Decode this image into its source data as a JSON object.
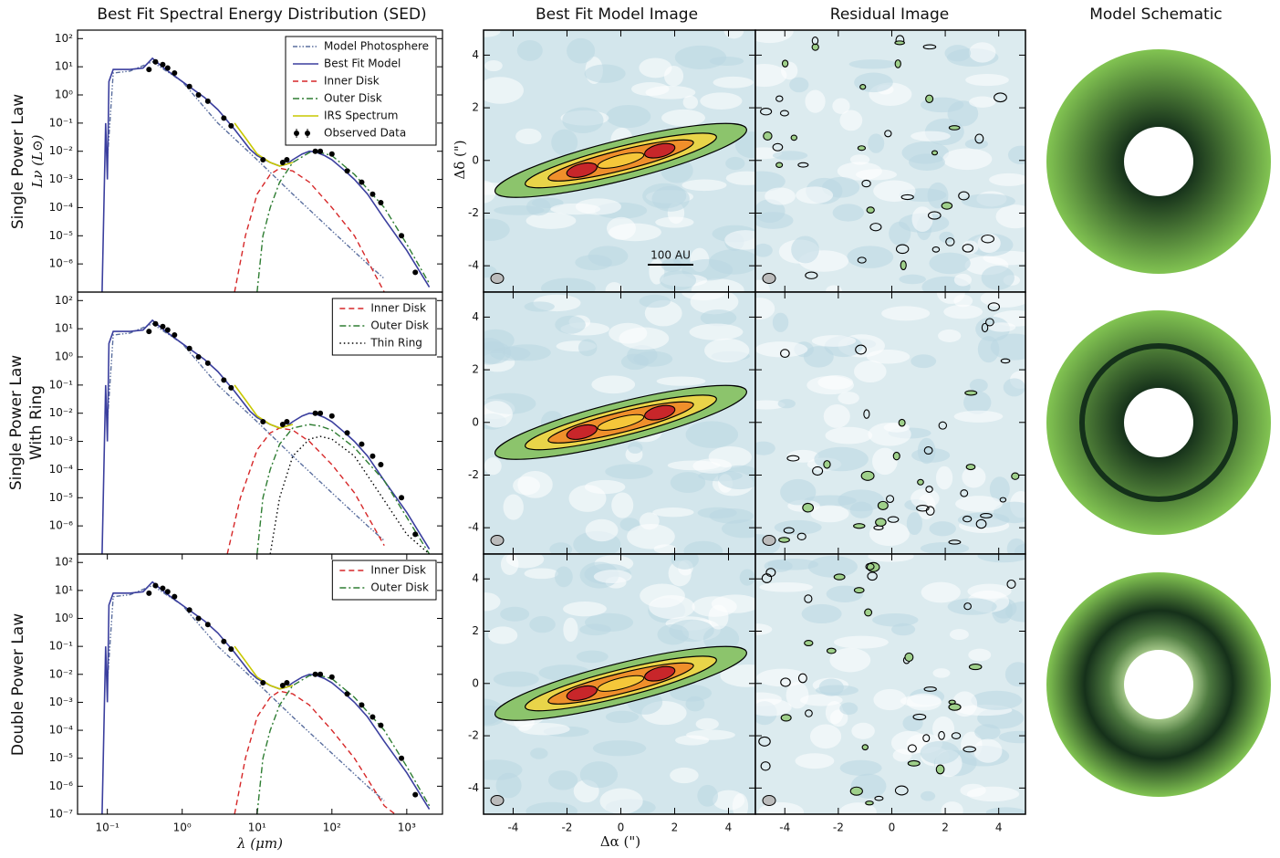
{
  "column_titles": [
    "Best Fit Spectral Energy Distribution (SED)",
    "Best Fit Model Image",
    "Residual Image",
    "Model Schematic"
  ],
  "row_labels": [
    [
      "Single Power Law"
    ],
    [
      "Single Power Law",
      "With Ring"
    ],
    [
      "Double Power Law"
    ]
  ],
  "image_axes": {
    "xlabel": "Δα (\")",
    "ylabel": "Δδ (\")",
    "xlim": [
      -5.1,
      5.0
    ],
    "ylim": [
      -5.0,
      4.95
    ],
    "xticks": [
      -4,
      -2,
      0,
      2,
      4
    ],
    "yticks": [
      -4,
      -2,
      0,
      2,
      4
    ],
    "scale_bar": "100 AU"
  },
  "chart_data": [
    {
      "type": "line",
      "xscale": "log",
      "yscale": "log",
      "ylabel": "Lν (L⊙)",
      "legend": "upper right",
      "xlim": [
        0.04,
        3000
      ],
      "ylim": [
        1e-07,
        200
      ],
      "yticks": [
        {
          "value": 100,
          "label": "10²"
        },
        {
          "value": 10,
          "label": "10¹"
        },
        {
          "value": 1,
          "label": "10⁰"
        },
        {
          "value": 0.1,
          "label": "10⁻¹"
        },
        {
          "value": 0.01,
          "label": "10⁻²"
        },
        {
          "value": 0.001,
          "label": "10⁻³"
        },
        {
          "value": 0.0001,
          "label": "10⁻⁴"
        },
        {
          "value": 1e-05,
          "label": "10⁻⁵"
        },
        {
          "value": 1e-06,
          "label": "10⁻⁶"
        }
      ],
      "series": [
        {
          "name": "Model Photosphere",
          "color": "#5a6e9e",
          "linestyle": "dashdotdot",
          "x": [
            0.1,
            0.12,
            0.2,
            0.4,
            1,
            3,
            10,
            30,
            100,
            300,
            500
          ],
          "values": [
            0.005,
            6,
            7,
            15,
            3,
            0.1,
            0.005,
            0.0003,
            1.5e-05,
            1e-06,
            3e-07
          ]
        },
        {
          "name": "Best Fit Model",
          "color": "#3b3f9e",
          "linestyle": "solid",
          "x": [
            0.085,
            0.095,
            0.1,
            0.105,
            0.12,
            0.2,
            0.3,
            0.4,
            0.5,
            0.7,
            1,
            2,
            3,
            5,
            8,
            10,
            15,
            20,
            25,
            30,
            40,
            50,
            60,
            80,
            100,
            150,
            200,
            300,
            500,
            1000,
            2000
          ],
          "values": [
            1e-07,
            0.1,
            0.001,
            3,
            8,
            8,
            9,
            20,
            12,
            6,
            3,
            0.8,
            0.3,
            0.06,
            0.012,
            0.007,
            0.004,
            0.003,
            0.0035,
            0.005,
            0.008,
            0.01,
            0.0095,
            0.007,
            0.005,
            0.002,
            0.001,
            0.0003,
            4e-05,
            3e-06,
            1.5e-07
          ]
        },
        {
          "name": "Inner Disk",
          "color": "#d62728",
          "linestyle": "dashed",
          "x": [
            5,
            7,
            10,
            15,
            20,
            30,
            50,
            100,
            200,
            500
          ],
          "values": [
            1e-07,
            1e-05,
            0.0003,
            0.0015,
            0.0025,
            0.002,
            0.0008,
            0.0001,
            1e-05,
            1e-07
          ]
        },
        {
          "name": "Outer Disk",
          "color": "#2e7d32",
          "linestyle": "dashdot",
          "x": [
            10,
            12,
            15,
            20,
            30,
            50,
            70,
            100,
            200,
            500,
            1000,
            2000
          ],
          "values": [
            1e-07,
            1e-05,
            0.0001,
            0.0008,
            0.004,
            0.009,
            0.009,
            0.007,
            0.0015,
            0.0001,
            5e-06,
            2e-07
          ]
        },
        {
          "name": "IRS Spectrum",
          "color": "#c8c800",
          "linestyle": "solid",
          "x": [
            5,
            7,
            10,
            15,
            20,
            30
          ],
          "values": [
            0.1,
            0.03,
            0.008,
            0.004,
            0.003,
            0.004
          ]
        },
        {
          "name": "Observed Data",
          "color": "#000000",
          "linestyle": "none",
          "marker": "o",
          "x": [
            0.36,
            0.44,
            0.55,
            0.64,
            0.79,
            1.25,
            1.65,
            2.2,
            3.6,
            4.5,
            12,
            22,
            25,
            60,
            70,
            100,
            160,
            250,
            350,
            450,
            850,
            1300
          ],
          "values": [
            8,
            15,
            12,
            9,
            6,
            2,
            1,
            0.6,
            0.15,
            0.08,
            0.005,
            0.004,
            0.005,
            0.01,
            0.01,
            0.008,
            0.002,
            0.0008,
            0.0003,
            0.00015,
            1e-05,
            5e-07
          ]
        }
      ]
    },
    {
      "type": "line",
      "xscale": "log",
      "yscale": "log",
      "legend": "upper right",
      "xlim": [
        0.04,
        3000
      ],
      "ylim": [
        1e-07,
        200
      ],
      "yticks": [
        {
          "value": 100,
          "label": "10²"
        },
        {
          "value": 10,
          "label": "10¹"
        },
        {
          "value": 1,
          "label": "10⁰"
        },
        {
          "value": 0.1,
          "label": "10⁻¹"
        },
        {
          "value": 0.01,
          "label": "10⁻²"
        },
        {
          "value": 0.001,
          "label": "10⁻³"
        },
        {
          "value": 0.0001,
          "label": "10⁻⁴"
        },
        {
          "value": 1e-05,
          "label": "10⁻⁵"
        },
        {
          "value": 1e-06,
          "label": "10⁻⁶"
        }
      ],
      "series": [
        {
          "color": "#5a6e9e",
          "linestyle": "dashdotdot",
          "x": [
            0.1,
            0.12,
            0.2,
            0.4,
            1,
            3,
            10,
            30,
            100,
            300,
            500
          ],
          "values": [
            0.005,
            6,
            7,
            15,
            3,
            0.1,
            0.005,
            0.0003,
            1.5e-05,
            1e-06,
            3e-07
          ]
        },
        {
          "color": "#3b3f9e",
          "linestyle": "solid",
          "x": [
            0.085,
            0.095,
            0.1,
            0.105,
            0.12,
            0.2,
            0.3,
            0.4,
            0.5,
            0.7,
            1,
            2,
            3,
            5,
            8,
            10,
            15,
            20,
            25,
            30,
            40,
            50,
            60,
            80,
            100,
            150,
            200,
            300,
            500,
            1000,
            2000
          ],
          "values": [
            1e-07,
            0.1,
            0.001,
            3,
            8,
            8,
            9,
            20,
            12,
            6,
            3,
            0.8,
            0.3,
            0.06,
            0.012,
            0.007,
            0.004,
            0.003,
            0.0035,
            0.005,
            0.008,
            0.01,
            0.0095,
            0.007,
            0.005,
            0.002,
            0.001,
            0.0003,
            4e-05,
            3e-06,
            1.5e-07
          ]
        },
        {
          "name": "Inner Disk",
          "color": "#d62728",
          "linestyle": "dashed",
          "x": [
            4,
            6,
            10,
            15,
            20,
            30,
            50,
            100,
            200,
            500
          ],
          "values": [
            1e-07,
            1e-05,
            0.0005,
            0.002,
            0.003,
            0.0025,
            0.001,
            0.00015,
            1.5e-05,
            2e-07
          ]
        },
        {
          "name": "Outer Disk",
          "color": "#2e7d32",
          "linestyle": "dashdot",
          "x": [
            10,
            12,
            15,
            20,
            30,
            50,
            70,
            100,
            200,
            500,
            1000,
            2000
          ],
          "values": [
            1e-07,
            1e-05,
            0.0001,
            0.0008,
            0.003,
            0.004,
            0.0035,
            0.0025,
            0.0006,
            4e-05,
            2e-06,
            1e-07
          ]
        },
        {
          "name": "Thin Ring",
          "color": "#000000",
          "linestyle": "dotted",
          "x": [
            15,
            20,
            30,
            50,
            70,
            100,
            200,
            500,
            1000,
            2000
          ],
          "values": [
            1e-07,
            1e-05,
            0.0003,
            0.0012,
            0.0015,
            0.0012,
            0.0003,
            8e-06,
            5e-07,
            1e-07
          ]
        },
        {
          "color": "#c8c800",
          "linestyle": "solid",
          "x": [
            5,
            7,
            10,
            15,
            20,
            30
          ],
          "values": [
            0.1,
            0.03,
            0.008,
            0.004,
            0.003,
            0.004
          ]
        },
        {
          "color": "#000000",
          "linestyle": "none",
          "marker": "o",
          "x": [
            0.36,
            0.44,
            0.55,
            0.64,
            0.79,
            1.25,
            1.65,
            2.2,
            3.6,
            4.5,
            12,
            22,
            25,
            60,
            70,
            100,
            160,
            250,
            350,
            450,
            850,
            1300
          ],
          "values": [
            8,
            15,
            12,
            9,
            6,
            2,
            1,
            0.6,
            0.15,
            0.08,
            0.005,
            0.004,
            0.005,
            0.01,
            0.01,
            0.008,
            0.002,
            0.0008,
            0.0003,
            0.00015,
            1e-05,
            5e-07
          ]
        }
      ]
    },
    {
      "type": "line",
      "xscale": "log",
      "yscale": "log",
      "xlabel": "λ (μm)",
      "legend": "upper right",
      "xlim": [
        0.04,
        3000
      ],
      "ylim": [
        1e-07,
        200
      ],
      "xticks": [
        {
          "value": 0.1,
          "label": "10⁻¹"
        },
        {
          "value": 1,
          "label": "10⁰"
        },
        {
          "value": 10,
          "label": "10¹"
        },
        {
          "value": 100,
          "label": "10²"
        },
        {
          "value": 1000,
          "label": "10³"
        }
      ],
      "yticks": [
        {
          "value": 100,
          "label": "10²"
        },
        {
          "value": 10,
          "label": "10¹"
        },
        {
          "value": 1,
          "label": "10⁰"
        },
        {
          "value": 0.1,
          "label": "10⁻¹"
        },
        {
          "value": 0.01,
          "label": "10⁻²"
        },
        {
          "value": 0.001,
          "label": "10⁻³"
        },
        {
          "value": 0.0001,
          "label": "10⁻⁴"
        },
        {
          "value": 1e-05,
          "label": "10⁻⁵"
        },
        {
          "value": 1e-06,
          "label": "10⁻⁶"
        },
        {
          "value": 1e-07,
          "label": "10⁻⁷"
        }
      ],
      "series": [
        {
          "color": "#5a6e9e",
          "linestyle": "dashdotdot",
          "x": [
            0.1,
            0.12,
            0.2,
            0.4,
            1,
            3,
            10,
            30,
            100,
            300,
            500
          ],
          "values": [
            0.005,
            6,
            7,
            15,
            3,
            0.1,
            0.005,
            0.0003,
            1.5e-05,
            1e-06,
            3e-07
          ]
        },
        {
          "color": "#3b3f9e",
          "linestyle": "solid",
          "x": [
            0.085,
            0.095,
            0.1,
            0.105,
            0.12,
            0.2,
            0.3,
            0.4,
            0.5,
            0.7,
            1,
            2,
            3,
            5,
            8,
            10,
            15,
            20,
            25,
            30,
            40,
            50,
            60,
            80,
            100,
            150,
            200,
            300,
            500,
            1000,
            2000
          ],
          "values": [
            1e-07,
            0.1,
            0.001,
            3,
            8,
            8,
            9,
            20,
            12,
            6,
            3,
            0.8,
            0.3,
            0.06,
            0.012,
            0.007,
            0.004,
            0.003,
            0.0035,
            0.005,
            0.008,
            0.01,
            0.0095,
            0.007,
            0.005,
            0.002,
            0.001,
            0.0003,
            4e-05,
            3e-06,
            1.5e-07
          ]
        },
        {
          "name": "Inner Disk",
          "color": "#d62728",
          "linestyle": "dashed",
          "x": [
            5,
            7,
            10,
            15,
            20,
            30,
            50,
            100,
            200,
            500,
            700
          ],
          "values": [
            1e-07,
            1e-05,
            0.0003,
            0.0015,
            0.0025,
            0.002,
            0.0008,
            0.0001,
            1e-05,
            2e-07,
            1e-07
          ]
        },
        {
          "name": "Outer Disk",
          "color": "#2e7d32",
          "linestyle": "dashdot",
          "x": [
            10,
            12,
            15,
            20,
            30,
            50,
            70,
            100,
            200,
            500,
            1000,
            2000
          ],
          "values": [
            1e-07,
            1e-05,
            0.0001,
            0.0008,
            0.004,
            0.009,
            0.009,
            0.007,
            0.0015,
            0.0001,
            5e-06,
            2e-07
          ]
        },
        {
          "color": "#c8c800",
          "linestyle": "solid",
          "x": [
            5,
            7,
            10,
            15,
            20,
            30
          ],
          "values": [
            0.1,
            0.03,
            0.008,
            0.004,
            0.003,
            0.004
          ]
        },
        {
          "color": "#000000",
          "linestyle": "none",
          "marker": "o",
          "x": [
            0.36,
            0.44,
            0.55,
            0.64,
            0.79,
            1.25,
            1.65,
            2.2,
            3.6,
            4.5,
            12,
            22,
            25,
            60,
            70,
            100,
            160,
            250,
            350,
            450,
            850,
            1300
          ],
          "values": [
            8,
            15,
            12,
            9,
            6,
            2,
            1,
            0.6,
            0.15,
            0.08,
            0.005,
            0.004,
            0.005,
            0.01,
            0.01,
            0.008,
            0.002,
            0.0008,
            0.0003,
            0.00015,
            1e-05,
            5e-07
          ]
        }
      ]
    }
  ]
}
